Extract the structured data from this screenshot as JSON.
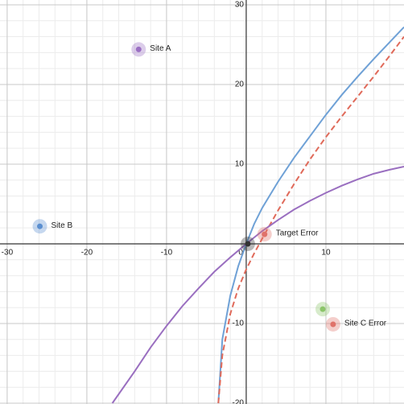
{
  "chart_data": {
    "type": "line",
    "xlim": [
      -30.9,
      19.8
    ],
    "ylim": [
      -20.1,
      30.6
    ],
    "xticks": [
      -30,
      -20,
      -10,
      0,
      10
    ],
    "yticks": [
      -20,
      -10,
      10,
      20,
      30
    ],
    "grid": true,
    "minor_step": 2,
    "series": [
      {
        "color": "#6fa1d6",
        "dashed": false,
        "x": [
          -3.5,
          -3,
          -2,
          -1,
          0,
          1,
          2,
          4,
          6,
          8,
          10,
          12,
          14,
          16,
          18,
          19.8
        ],
        "values": [
          -20,
          -12,
          -6.5,
          -2.8,
          0,
          2.5,
          4.5,
          7.8,
          10.8,
          13.5,
          16.2,
          18.7,
          21,
          23.2,
          25.3,
          27.2
        ]
      },
      {
        "color": "#e06a5a",
        "dashed": true,
        "x": [
          -3.5,
          -3,
          -2,
          -1,
          0,
          1,
          2.3,
          4,
          6,
          8,
          10,
          12,
          14,
          16,
          18,
          19.8
        ],
        "values": [
          -20,
          -14,
          -8.8,
          -5.6,
          -3.2,
          -1.2,
          1.2,
          4.2,
          7.5,
          10.6,
          13.4,
          16,
          18.5,
          21,
          23.6,
          26
        ]
      },
      {
        "color": "#9a6fc0",
        "dashed": false,
        "x": [
          -16.8,
          -14,
          -12,
          -10,
          -8,
          -6,
          -4,
          -2,
          0,
          2,
          4,
          6,
          8,
          10,
          12,
          14,
          16,
          18,
          19.8
        ],
        "values": [
          -20,
          -16,
          -13,
          -10.3,
          -7.8,
          -5.6,
          -3.5,
          -1.7,
          0,
          1.6,
          3,
          4.3,
          5.4,
          6.4,
          7.3,
          8.1,
          8.8,
          9.3,
          9.7
        ]
      }
    ],
    "points": [
      {
        "label": "Site A",
        "x": -13.5,
        "y": 24.4,
        "color": "#9b6fc3"
      },
      {
        "label": "Site B",
        "x": -25.9,
        "y": 2.2,
        "color": "#5b8fd0"
      },
      {
        "label": "Target Error",
        "x": 2.3,
        "y": 1.2,
        "color": "#e0726a"
      },
      {
        "label": "Site C Error",
        "x": 10.9,
        "y": -10.1,
        "color": "#e0726a"
      },
      {
        "x": 9.6,
        "y": -8.2,
        "color": "#8cc56a"
      },
      {
        "x": 0.2,
        "y": 0,
        "color": "#333333"
      }
    ]
  }
}
